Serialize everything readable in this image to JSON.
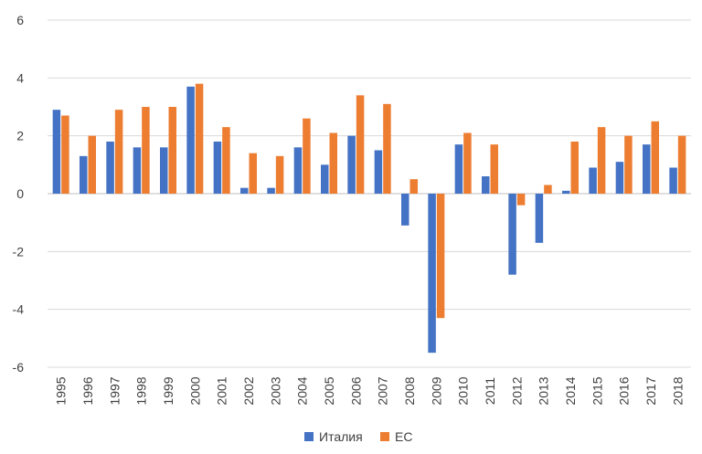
{
  "chart_data": {
    "type": "bar",
    "title": "",
    "xlabel": "",
    "ylabel": "",
    "ylim": [
      -6,
      6
    ],
    "yticks": [
      -6,
      -4,
      -2,
      0,
      2,
      4,
      6
    ],
    "grid": true,
    "legend_position": "bottom",
    "categories": [
      "1995",
      "1996",
      "1997",
      "1998",
      "1999",
      "2000",
      "2001",
      "2002",
      "2003",
      "2004",
      "2005",
      "2006",
      "2007",
      "2008",
      "2009",
      "2010",
      "2011",
      "2012",
      "2013",
      "2014",
      "2015",
      "2016",
      "2017",
      "2018"
    ],
    "series": [
      {
        "name": "Италия",
        "color": "#4472C4",
        "values": [
          2.9,
          1.3,
          1.8,
          1.6,
          1.6,
          3.7,
          1.8,
          0.2,
          0.2,
          1.6,
          1.0,
          2.0,
          1.5,
          -1.1,
          -5.5,
          1.7,
          0.6,
          -2.8,
          -1.7,
          0.1,
          0.9,
          1.1,
          1.7,
          0.9
        ]
      },
      {
        "name": "ЕС",
        "color": "#ED7D31",
        "values": [
          2.7,
          2.0,
          2.9,
          3.0,
          3.0,
          3.8,
          2.3,
          1.4,
          1.3,
          2.6,
          2.1,
          3.4,
          3.1,
          0.5,
          -4.3,
          2.1,
          1.7,
          -0.4,
          0.3,
          1.8,
          2.3,
          2.0,
          2.5,
          2.0
        ]
      }
    ]
  }
}
